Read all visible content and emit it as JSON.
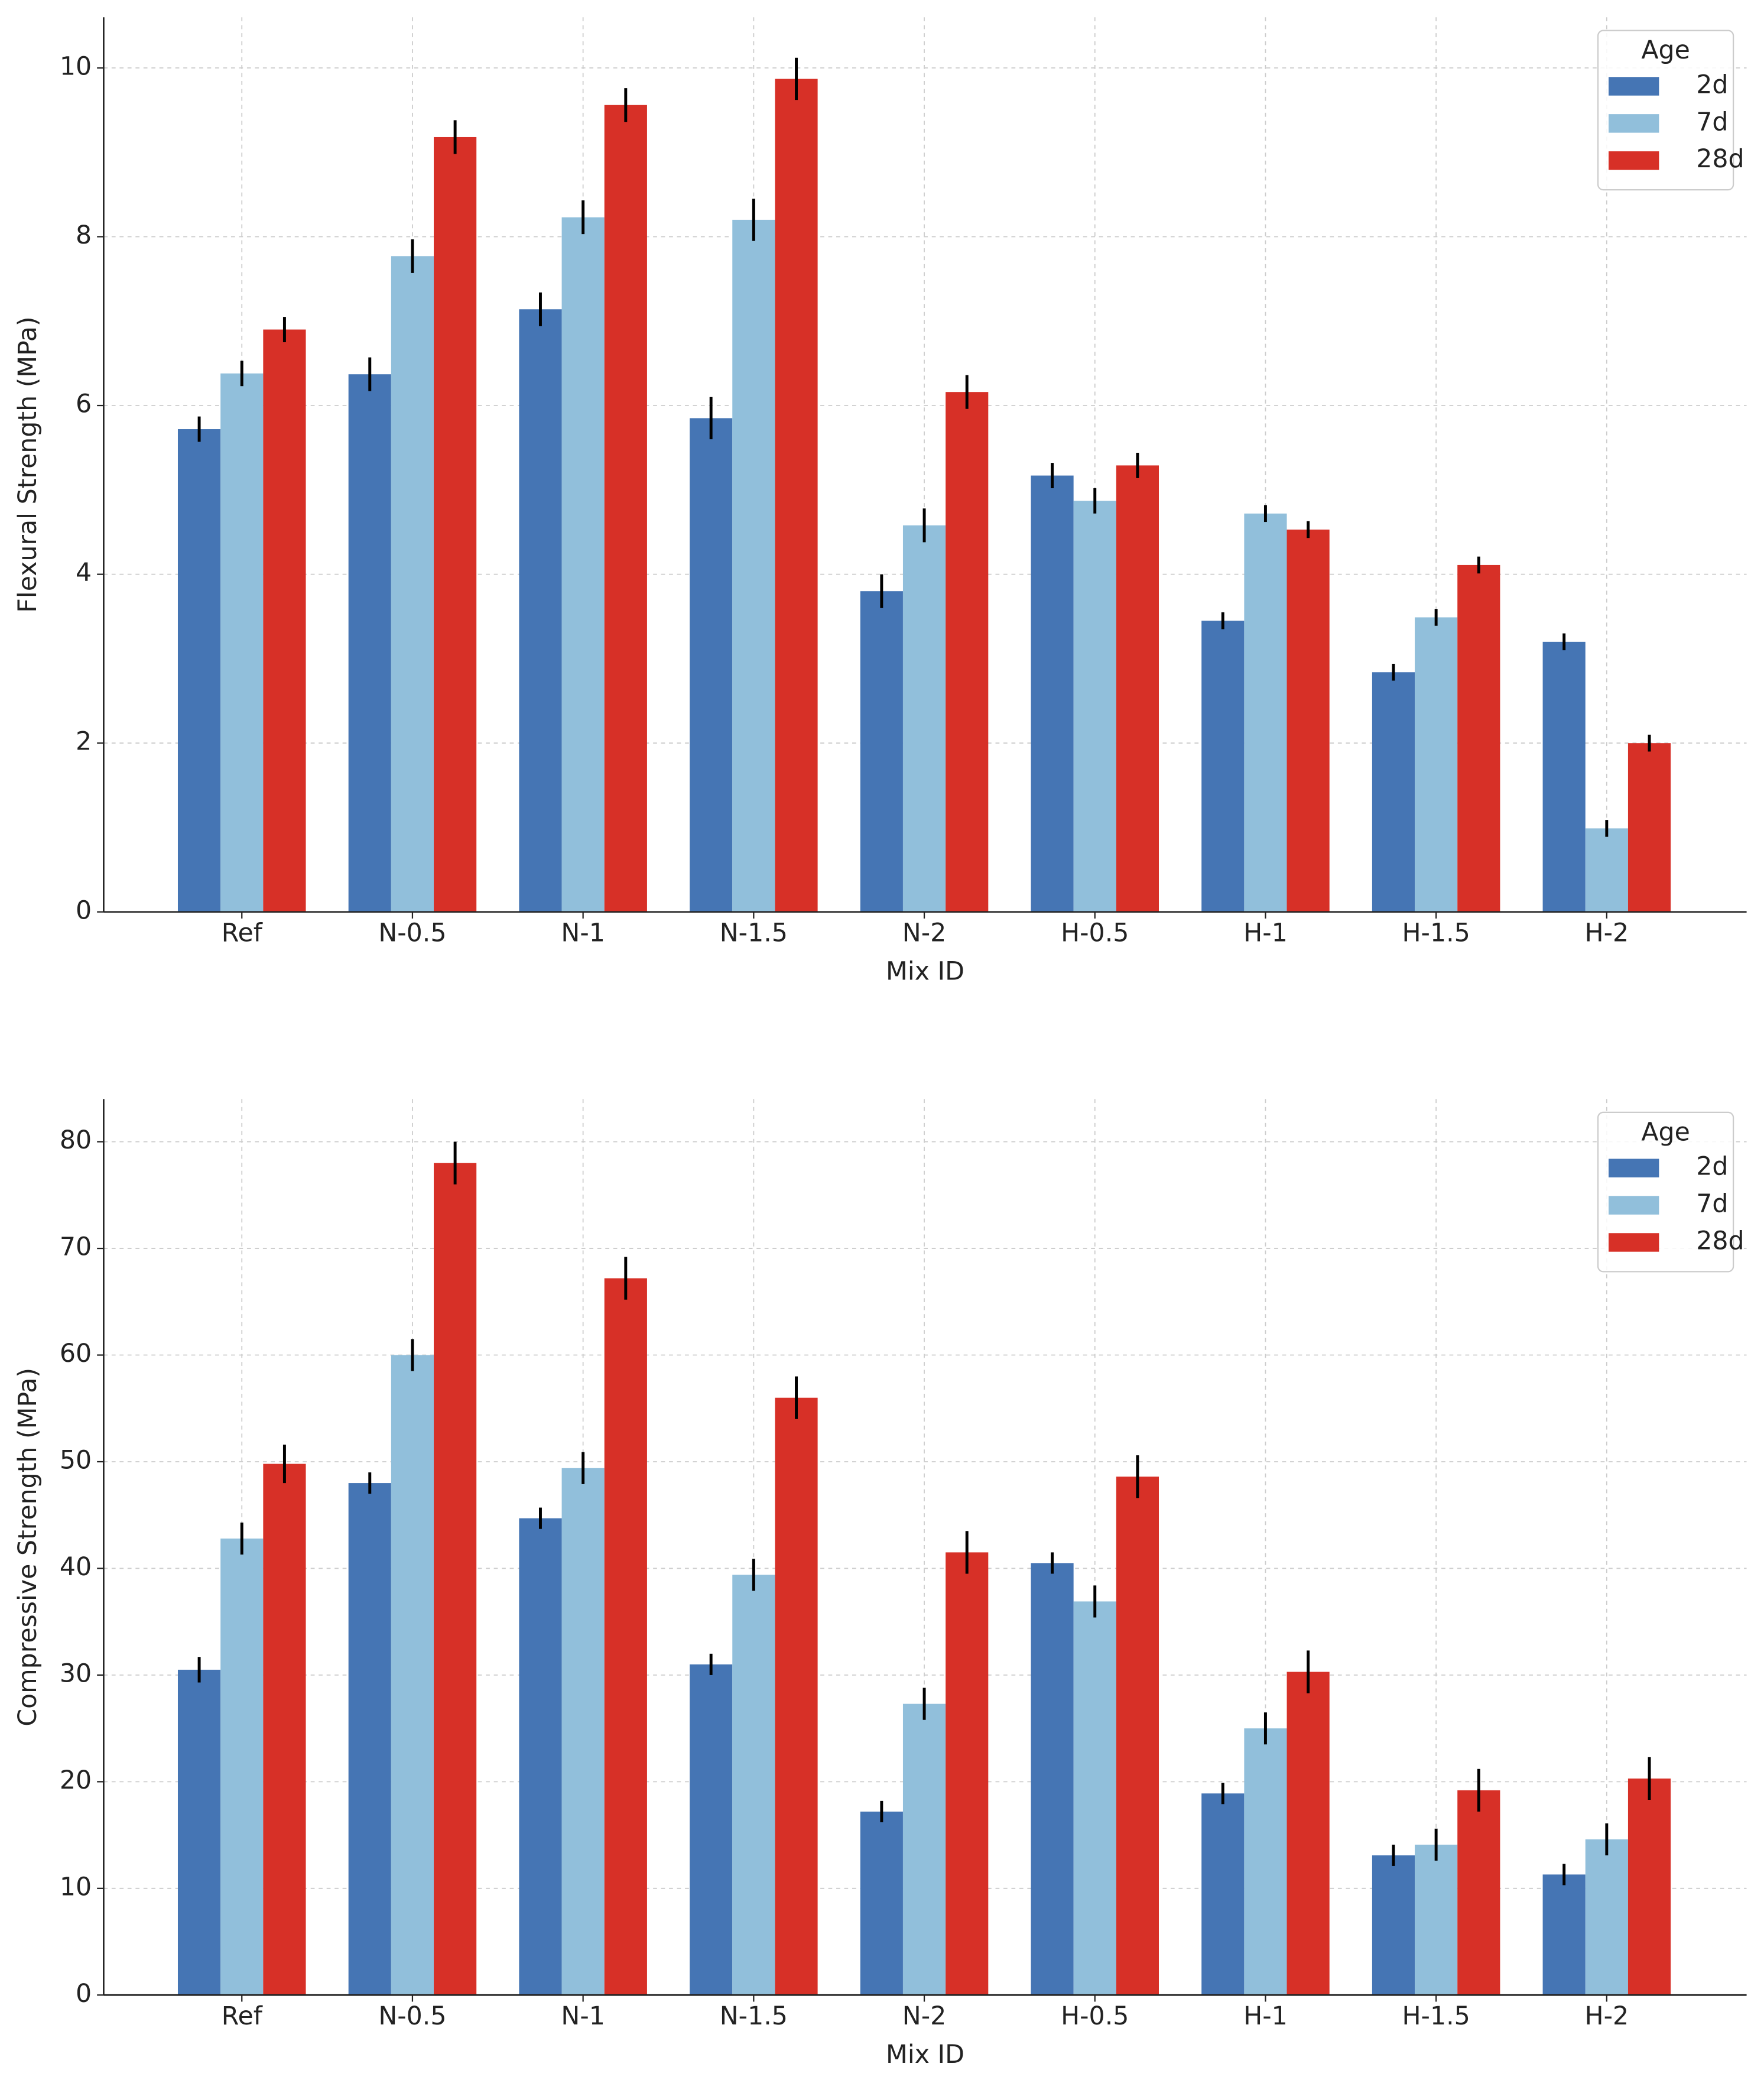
{
  "chart_data": [
    {
      "type": "bar",
      "xlabel": "Mix ID",
      "ylabel": "Flexural Strength (MPa)",
      "categories": [
        "Ref",
        "N-0.5",
        "N-1",
        "N-1.5",
        "N-2",
        "H-0.5",
        "H-1",
        "H-1.5",
        "H-2"
      ],
      "legend_title": "Age",
      "legend": "upper right",
      "grid": true,
      "ylim": [
        0,
        10.6
      ],
      "yticks": [
        0,
        2,
        4,
        6,
        8,
        10
      ],
      "series": [
        {
          "name": "2d",
          "color": "#4575b4",
          "values": [
            5.72,
            6.37,
            7.14,
            5.85,
            3.8,
            5.17,
            3.45,
            2.84,
            3.2
          ],
          "errors": [
            0.15,
            0.2,
            0.2,
            0.25,
            0.2,
            0.15,
            0.1,
            0.1,
            0.1
          ]
        },
        {
          "name": "7d",
          "color": "#91bfdb",
          "values": [
            6.38,
            7.77,
            8.23,
            8.2,
            4.58,
            4.87,
            4.72,
            3.49,
            0.99
          ],
          "errors": [
            0.15,
            0.2,
            0.2,
            0.25,
            0.2,
            0.15,
            0.1,
            0.1,
            0.1
          ]
        },
        {
          "name": "28d",
          "color": "#d73027",
          "values": [
            6.9,
            9.18,
            9.56,
            9.87,
            6.16,
            5.29,
            4.53,
            4.11,
            2.0
          ],
          "errors": [
            0.15,
            0.2,
            0.2,
            0.25,
            0.2,
            0.15,
            0.1,
            0.1,
            0.1
          ]
        }
      ]
    },
    {
      "type": "bar",
      "xlabel": "Mix ID",
      "ylabel": "Compressive Strength (MPa)",
      "categories": [
        "Ref",
        "N-0.5",
        "N-1",
        "N-1.5",
        "N-2",
        "H-0.5",
        "H-1",
        "H-1.5",
        "H-2"
      ],
      "legend_title": "Age",
      "legend": "upper right",
      "grid": true,
      "ylim": [
        0,
        84
      ],
      "yticks": [
        0,
        10,
        20,
        30,
        40,
        50,
        60,
        70,
        80
      ],
      "series": [
        {
          "name": "2d",
          "color": "#4575b4",
          "values": [
            30.5,
            48,
            44.7,
            31,
            17.2,
            40.5,
            18.9,
            13.1,
            11.3
          ],
          "errors": [
            1.2,
            1,
            1,
            1,
            1,
            1,
            1,
            1,
            1
          ]
        },
        {
          "name": "7d",
          "color": "#91bfdb",
          "values": [
            42.8,
            60,
            49.4,
            39.4,
            27.3,
            36.9,
            25,
            14.1,
            14.6
          ],
          "errors": [
            1.5,
            1.5,
            1.5,
            1.5,
            1.5,
            1.5,
            1.5,
            1.5,
            1.5
          ]
        },
        {
          "name": "28d",
          "color": "#d73027",
          "values": [
            49.8,
            78,
            67.2,
            56,
            41.5,
            48.6,
            30.3,
            19.2,
            20.3
          ],
          "errors": [
            1.8,
            2,
            2,
            2,
            2,
            2,
            2,
            2,
            2
          ]
        }
      ]
    }
  ]
}
